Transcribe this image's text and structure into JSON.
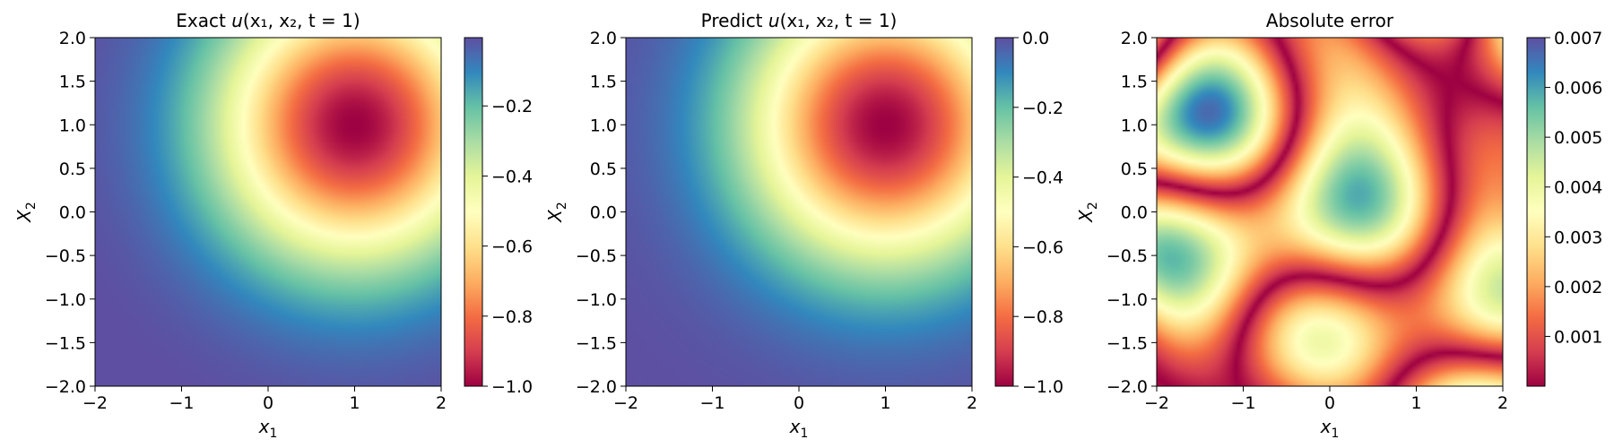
{
  "chart_data": [
    {
      "type": "heatmap",
      "title": "Exact u(x₁, x₂, t = 1)",
      "title_parts": {
        "prefix": "Exact ",
        "var": "u",
        "args": "(x₁, x₂, t = 1)"
      },
      "xlabel": {
        "base": "x",
        "sub": "1"
      },
      "ylabel": {
        "base": "X",
        "sub": "2"
      },
      "xlim": [
        -2,
        2
      ],
      "ylim": [
        -2,
        2
      ],
      "xticks": [
        -2,
        -1,
        0,
        1,
        2
      ],
      "xtick_labels": [
        "−2",
        "−1",
        "0",
        "1",
        "2"
      ],
      "yticks": [
        -2.0,
        -1.5,
        -1.0,
        -0.5,
        0.0,
        0.5,
        1.0,
        1.5,
        2.0
      ],
      "ytick_labels": [
        "−2.0",
        "−1.5",
        "−1.0",
        "−0.5",
        "0.0",
        "0.5",
        "1.0",
        "1.5",
        "2.0"
      ],
      "colormap": "Spectral",
      "field": "gaussian_well",
      "center": [
        1,
        1
      ],
      "value_range": [
        -1.0,
        -0.005
      ],
      "colorbar": {
        "ticks": [
          -1.0,
          -0.8,
          -0.6,
          -0.4,
          -0.2
        ],
        "tick_labels": [
          "−1.0",
          "−0.8",
          "−0.6",
          "−0.4",
          "−0.2"
        ]
      }
    },
    {
      "type": "heatmap",
      "title": "Predict u(x₁, x₂, t = 1)",
      "title_parts": {
        "prefix": "Predict ",
        "var": "u",
        "args": "(x₁, x₂, t = 1)"
      },
      "xlabel": {
        "base": "x",
        "sub": "1"
      },
      "ylabel": {
        "base": "X",
        "sub": "2"
      },
      "xlim": [
        -2,
        2
      ],
      "ylim": [
        -2,
        2
      ],
      "xticks": [
        -2,
        -1,
        0,
        1,
        2
      ],
      "xtick_labels": [
        "−2",
        "−1",
        "0",
        "1",
        "2"
      ],
      "yticks": [
        -2.0,
        -1.5,
        -1.0,
        -0.5,
        0.0,
        0.5,
        1.0,
        1.5,
        2.0
      ],
      "ytick_labels": [
        "−2.0",
        "−1.5",
        "−1.0",
        "−0.5",
        "0.0",
        "0.5",
        "1.0",
        "1.5",
        "2.0"
      ],
      "colormap": "Spectral",
      "field": "gaussian_well",
      "center": [
        1,
        1
      ],
      "value_range": [
        -1.0,
        0.0
      ],
      "colorbar": {
        "ticks": [
          -1.0,
          -0.8,
          -0.6,
          -0.4,
          -0.2,
          0.0
        ],
        "tick_labels": [
          "−1.0",
          "−0.8",
          "−0.6",
          "−0.4",
          "−0.2",
          "0.0"
        ]
      }
    },
    {
      "type": "heatmap",
      "title": "Absolute error",
      "xlabel": {
        "base": "x",
        "sub": "1"
      },
      "ylabel": {
        "base": "X",
        "sub": "2"
      },
      "xlim": [
        -2,
        2
      ],
      "ylim": [
        -2,
        2
      ],
      "xticks": [
        -2,
        -1,
        0,
        1,
        2
      ],
      "xtick_labels": [
        "−2",
        "−1",
        "0",
        "1",
        "2"
      ],
      "yticks": [
        -2.0,
        -1.5,
        -1.0,
        -0.5,
        0.0,
        0.5,
        1.0,
        1.5,
        2.0
      ],
      "ytick_labels": [
        "−2.0",
        "−1.5",
        "−1.0",
        "−0.5",
        "0.0",
        "0.5",
        "1.0",
        "1.5",
        "2.0"
      ],
      "colormap": "Spectral",
      "field": "error_pattern",
      "value_range": [
        0.0,
        0.007
      ],
      "colorbar": {
        "ticks": [
          0.001,
          0.002,
          0.003,
          0.004,
          0.005,
          0.006,
          0.007
        ],
        "tick_labels": [
          "0.001",
          "0.002",
          "0.003",
          "0.004",
          "0.005",
          "0.006",
          "0.007"
        ]
      }
    }
  ]
}
